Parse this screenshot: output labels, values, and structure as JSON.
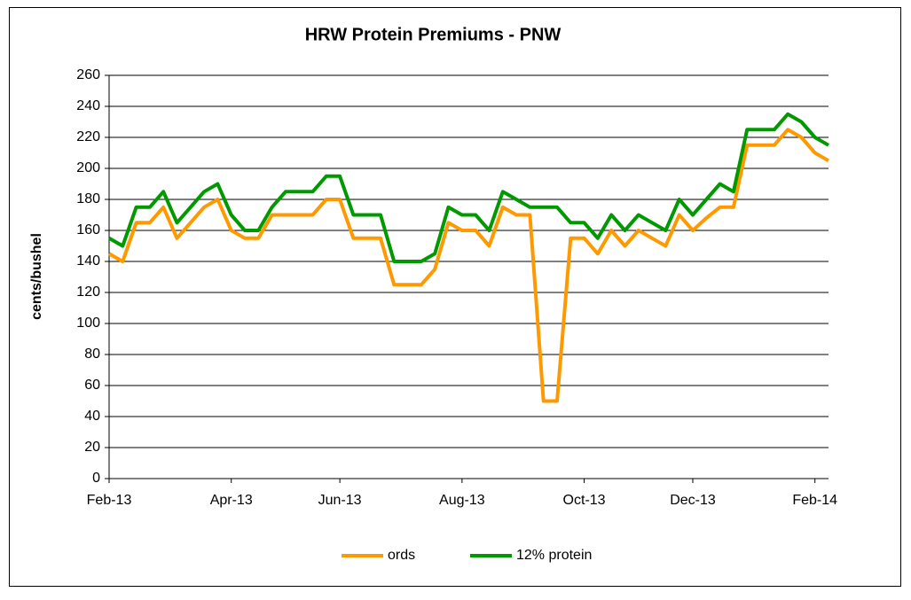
{
  "chart_data": {
    "type": "line",
    "title": "HRW Protein Premiums - PNW",
    "y_label": "cents/bushel",
    "categories": [
      "Feb-13",
      null,
      null,
      null,
      null,
      null,
      null,
      null,
      null,
      "Apr-13",
      null,
      null,
      null,
      null,
      null,
      null,
      null,
      "Jun-13",
      null,
      null,
      null,
      null,
      null,
      null,
      null,
      null,
      "Aug-13",
      null,
      null,
      null,
      null,
      null,
      null,
      null,
      null,
      "Oct-13",
      null,
      null,
      null,
      null,
      null,
      null,
      null,
      "Dec-13",
      null,
      null,
      null,
      null,
      null,
      null,
      null,
      null,
      "Feb-14",
      null
    ],
    "series": [
      {
        "name": "ords",
        "color": "#ff9900",
        "values": [
          145,
          140,
          165,
          165,
          175,
          155,
          165,
          175,
          180,
          160,
          155,
          155,
          170,
          170,
          170,
          170,
          180,
          180,
          155,
          155,
          155,
          125,
          125,
          125,
          135,
          165,
          160,
          160,
          150,
          175,
          170,
          170,
          50,
          50,
          155,
          155,
          145,
          160,
          150,
          160,
          155,
          150,
          170,
          160,
          168,
          175,
          175,
          215,
          215,
          215,
          225,
          220,
          210,
          205
        ]
      },
      {
        "name": "12% protein",
        "color": "#009900",
        "values": [
          155,
          150,
          175,
          175,
          185,
          165,
          175,
          185,
          190,
          170,
          160,
          160,
          175,
          185,
          185,
          185,
          195,
          195,
          170,
          170,
          170,
          140,
          140,
          140,
          145,
          175,
          170,
          170,
          160,
          185,
          180,
          175,
          175,
          175,
          165,
          165,
          155,
          170,
          160,
          170,
          165,
          160,
          180,
          170,
          180,
          190,
          185,
          225,
          225,
          225,
          235,
          230,
          220,
          215
        ]
      }
    ],
    "ylim": [
      0,
      260
    ],
    "yticks": [
      0,
      20,
      40,
      60,
      80,
      100,
      120,
      140,
      160,
      180,
      200,
      220,
      240,
      260
    ],
    "grid": true,
    "legend": "bottom"
  }
}
